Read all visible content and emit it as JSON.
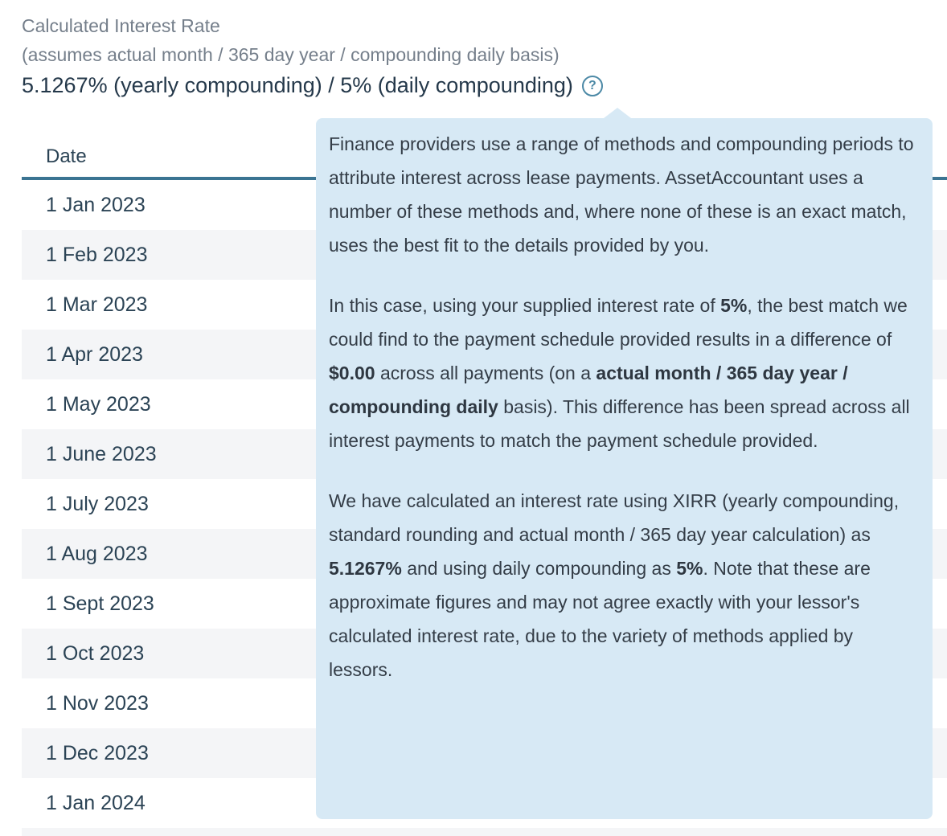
{
  "header": {
    "title": "Calculated Interest Rate",
    "subtitle": "(assumes actual month / 365 day year / compounding daily basis)",
    "rate_summary": "5.1267% (yearly compounding) / 5% (daily compounding)",
    "help_icon_glyph": "?"
  },
  "table": {
    "columns": [
      "Date"
    ],
    "rows": [
      "1 Jan 2023",
      "1 Feb 2023",
      "1 Mar 2023",
      "1 Apr 2023",
      "1 May 2023",
      "1 June 2023",
      "1 July 2023",
      "1 Aug 2023",
      "1 Sept 2023",
      "1 Oct 2023",
      "1 Nov 2023",
      "1 Dec 2023",
      "1 Jan 2024"
    ]
  },
  "tooltip": {
    "paragraphs": [
      [
        {
          "t": "Finance providers use a range of methods and compounding periods to attribute interest across lease payments. AssetAccountant uses a number of these methods and, where none of these is an exact match, uses the best fit to the details provided by you.",
          "b": false
        }
      ],
      [
        {
          "t": "In this case, using your supplied interest rate of ",
          "b": false
        },
        {
          "t": "5%",
          "b": true
        },
        {
          "t": ", the best match we could find to the payment schedule provided results in a difference of ",
          "b": false
        },
        {
          "t": "$0.00",
          "b": true
        },
        {
          "t": " across all payments (on a ",
          "b": false
        },
        {
          "t": "actual month / 365 day year / compounding daily",
          "b": true
        },
        {
          "t": " basis). This difference has been spread across all interest payments to match the payment schedule provided.",
          "b": false
        }
      ],
      [
        {
          "t": "We have calculated an interest rate using XIRR (yearly compounding, standard rounding and actual month / 365 day year calculation) as ",
          "b": false
        },
        {
          "t": "5.1267%",
          "b": true
        },
        {
          "t": " and using daily compounding as ",
          "b": false
        },
        {
          "t": "5%",
          "b": true
        },
        {
          "t": ". Note that these are approximate figures and may not agree exactly with your lessor's calculated interest rate, due to the variety of methods applied by lessors.",
          "b": false
        }
      ]
    ]
  },
  "colors": {
    "accent_teal": "#3b7492",
    "icon_teal": "#4c89a6",
    "tooltip_bg": "#d7e9f5",
    "row_stripe": "#f4f5f7",
    "text_dark": "#2b4355",
    "text_gray": "#757f8b",
    "tooltip_text": "#343d47"
  }
}
